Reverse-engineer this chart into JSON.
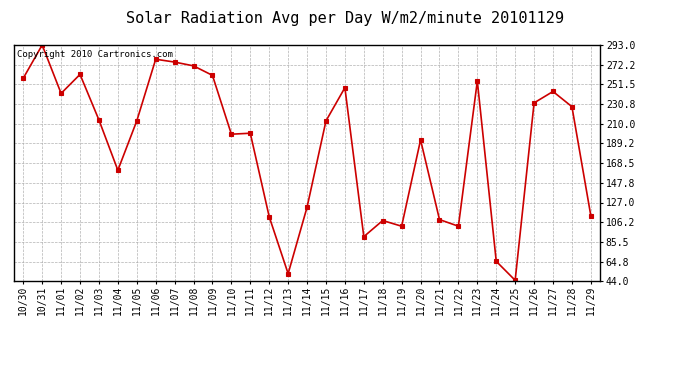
{
  "title": "Solar Radiation Avg per Day W/m2/minute 20101129",
  "copyright": "Copyright 2010 Cartronics.com",
  "x_labels": [
    "10/30",
    "10/31",
    "11/01",
    "11/02",
    "11/03",
    "11/04",
    "11/05",
    "11/06",
    "11/07",
    "11/08",
    "11/09",
    "11/10",
    "11/11",
    "11/12",
    "11/13",
    "11/14",
    "11/15",
    "11/16",
    "11/17",
    "11/18",
    "11/19",
    "11/20",
    "11/21",
    "11/22",
    "11/23",
    "11/24",
    "11/25",
    "11/26",
    "11/27",
    "11/28",
    "11/29"
  ],
  "y_values": [
    258,
    293,
    242,
    262,
    214,
    161,
    213,
    278,
    275,
    271,
    261,
    199,
    200,
    112,
    52,
    122,
    213,
    248,
    91,
    108,
    102,
    193,
    109,
    102,
    255,
    65,
    45,
    232,
    244,
    228,
    113
  ],
  "y_ticks": [
    44.0,
    64.8,
    85.5,
    106.2,
    127.0,
    147.8,
    168.5,
    189.2,
    210.0,
    230.8,
    251.5,
    272.2,
    293.0
  ],
  "line_color": "#cc0000",
  "marker_color": "#cc0000",
  "bg_color": "#ffffff",
  "grid_color": "#aaaaaa",
  "title_fontsize": 11,
  "copyright_fontsize": 6.5,
  "tick_fontsize": 7,
  "ylim_min": 44.0,
  "ylim_max": 293.0
}
